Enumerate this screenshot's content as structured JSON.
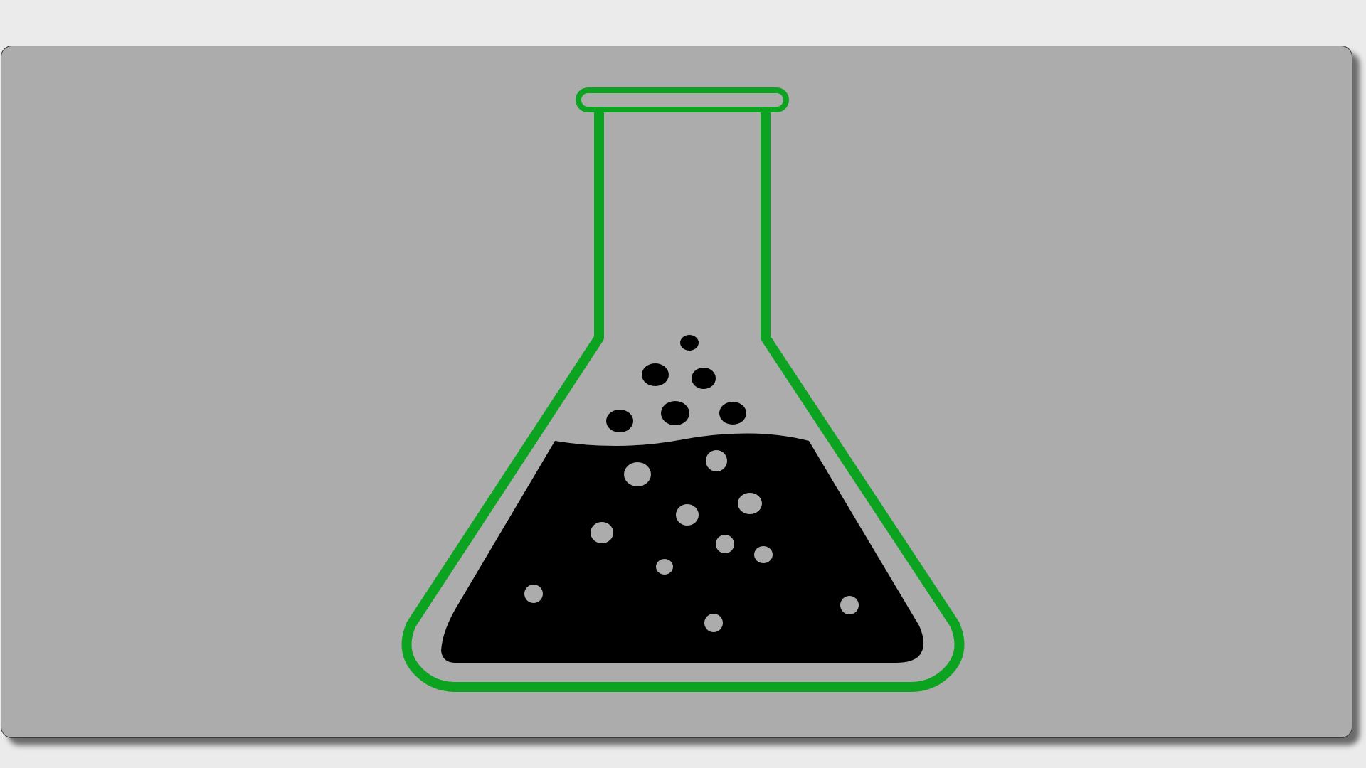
{
  "colors": {
    "page_background": "#ebebeb",
    "card_background": "#acacac",
    "card_border": "#3a3a3a",
    "flask_outline": "#0ba320",
    "liquid": "#000000",
    "liquid_bubbles": "#acacac",
    "rising_bubbles": "#000000"
  },
  "icons": {
    "flask": "erlenmeyer-flask-icon"
  }
}
